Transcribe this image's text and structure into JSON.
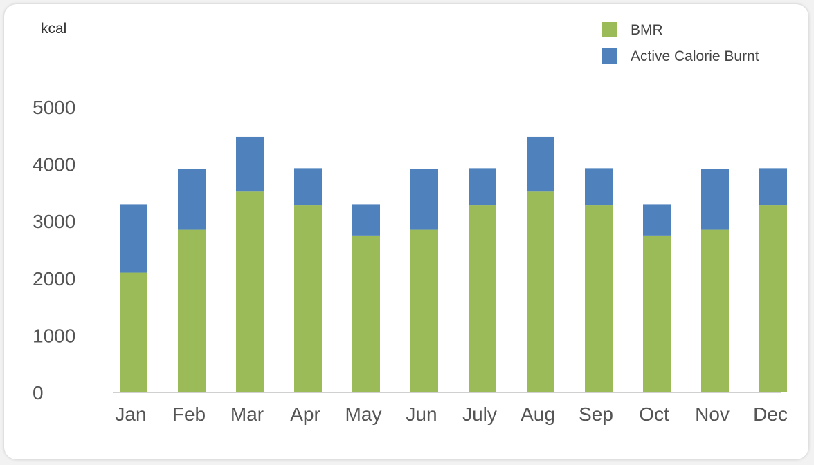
{
  "chart_data": {
    "type": "bar",
    "stacked": true,
    "unit_label": "kcal",
    "categories": [
      "Jan",
      "Feb",
      "Mar",
      "Apr",
      "May",
      "Jun",
      "July",
      "Aug",
      "Sep",
      "Oct",
      "Nov",
      "Dec"
    ],
    "series": [
      {
        "name": "BMR",
        "color": "#9bbb59",
        "values": [
          2100,
          2850,
          3520,
          3280,
          2750,
          2850,
          3280,
          3520,
          3280,
          2750,
          2850,
          3280
        ]
      },
      {
        "name": "Active Calorie Burnt",
        "color": "#4f81bd",
        "values": [
          1200,
          1070,
          960,
          650,
          550,
          1070,
          650,
          960,
          650,
          550,
          1070,
          650
        ]
      }
    ],
    "yticks": [
      0,
      1000,
      2000,
      3000,
      4000,
      5000
    ],
    "ylim": [
      0,
      5000
    ],
    "legend_position": "top-right",
    "grid": false
  }
}
